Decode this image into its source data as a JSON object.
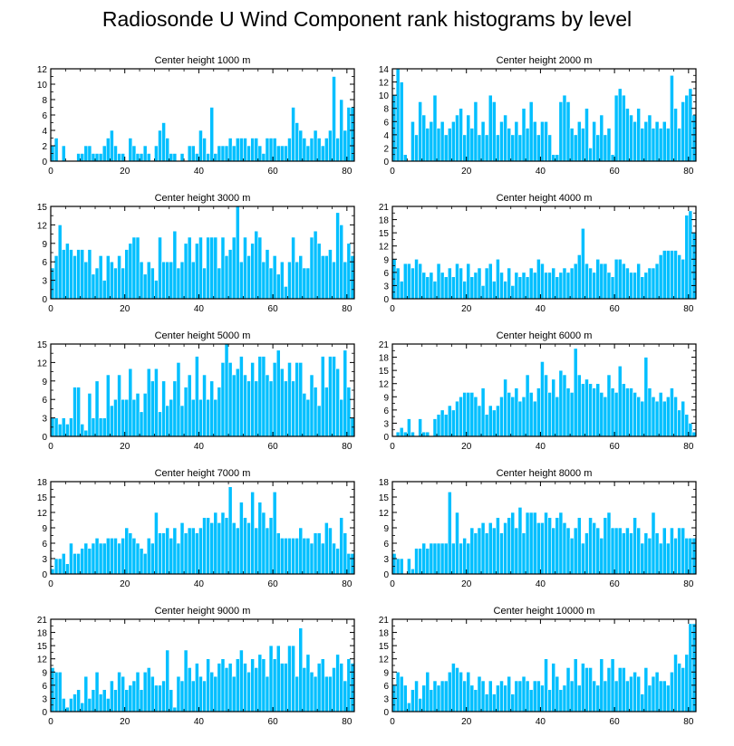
{
  "figure": {
    "title": "Radiosonde U Wind Component rank histograms by level",
    "bar_color": "#00bfff",
    "bar_edge_color": "#ffffff"
  },
  "chart_data": [
    {
      "type": "bar",
      "title": "Center height 1000 m",
      "xlabel": "",
      "ylabel": "",
      "xlim": [
        0,
        82
      ],
      "ylim": [
        0,
        12
      ],
      "xticks": [
        0,
        20,
        40,
        60,
        80
      ],
      "yticks": [
        0,
        2,
        4,
        6,
        8,
        10,
        12
      ],
      "values": [
        2,
        3,
        0,
        2,
        0,
        0,
        0,
        1,
        1,
        2,
        2,
        1,
        1,
        1,
        2,
        3,
        4,
        2,
        1,
        1,
        0,
        3,
        2,
        1,
        1,
        2,
        1,
        0,
        2,
        4,
        5,
        3,
        1,
        1,
        0,
        1,
        0,
        2,
        2,
        1,
        4,
        3,
        1,
        7,
        1,
        2,
        2,
        2,
        3,
        2,
        3,
        3,
        3,
        2,
        3,
        3,
        2,
        1,
        3,
        3,
        3,
        2,
        2,
        2,
        3,
        7,
        5,
        4,
        3,
        2,
        3,
        4,
        3,
        2,
        3,
        4,
        11,
        3,
        8,
        4,
        7,
        7
      ]
    },
    {
      "type": "bar",
      "title": "Center height 2000 m",
      "xlabel": "",
      "ylabel": "",
      "xlim": [
        0,
        82
      ],
      "ylim": [
        0,
        14
      ],
      "xticks": [
        0,
        20,
        40,
        60,
        80
      ],
      "yticks": [
        0,
        2,
        4,
        6,
        8,
        10,
        12,
        14
      ],
      "values": [
        10,
        14,
        12,
        1,
        0,
        6,
        4,
        9,
        7,
        5,
        6,
        10,
        5,
        6,
        4,
        5,
        6,
        7,
        8,
        4,
        7,
        5,
        9,
        4,
        6,
        4,
        10,
        9,
        4,
        6,
        7,
        5,
        4,
        6,
        4,
        8,
        5,
        9,
        6,
        4,
        6,
        6,
        4,
        1,
        1,
        9,
        10,
        9,
        5,
        4,
        6,
        5,
        8,
        2,
        6,
        4,
        7,
        4,
        5,
        1,
        10,
        11,
        10,
        8,
        7,
        6,
        8,
        5,
        6,
        7,
        5,
        6,
        5,
        6,
        5,
        13,
        8,
        5,
        9,
        10,
        11,
        7
      ]
    },
    {
      "type": "bar",
      "title": "Center height 3000 m",
      "xlabel": "",
      "ylabel": "",
      "xlim": [
        0,
        82
      ],
      "ylim": [
        0,
        15
      ],
      "xticks": [
        0,
        20,
        40,
        60,
        80
      ],
      "yticks": [
        0,
        3,
        6,
        9,
        12,
        15
      ],
      "values": [
        5,
        7,
        12,
        8,
        9,
        8,
        7,
        8,
        8,
        6,
        8,
        4,
        5,
        7,
        3,
        7,
        6,
        5,
        7,
        5,
        8,
        9,
        10,
        10,
        6,
        4,
        6,
        5,
        3,
        10,
        6,
        6,
        6,
        11,
        5,
        6,
        9,
        10,
        6,
        9,
        10,
        5,
        10,
        10,
        10,
        5,
        10,
        7,
        8,
        10,
        15,
        6,
        10,
        7,
        9,
        11,
        10,
        6,
        8,
        5,
        7,
        4,
        6,
        2,
        6,
        10,
        6,
        7,
        5,
        5,
        10,
        11,
        9,
        7,
        7,
        8,
        6,
        14,
        12,
        6,
        9,
        7
      ]
    },
    {
      "type": "bar",
      "title": "Center height 4000 m",
      "xlabel": "",
      "ylabel": "",
      "xlim": [
        0,
        82
      ],
      "ylim": [
        0,
        21
      ],
      "xticks": [
        0,
        20,
        40,
        60,
        80
      ],
      "yticks": [
        0,
        3,
        6,
        9,
        12,
        15,
        18,
        21
      ],
      "values": [
        9,
        7,
        4,
        8,
        8,
        7,
        9,
        8,
        6,
        5,
        6,
        4,
        8,
        6,
        5,
        7,
        5,
        8,
        7,
        4,
        8,
        5,
        6,
        7,
        3,
        7,
        8,
        4,
        9,
        6,
        4,
        7,
        3,
        6,
        5,
        6,
        5,
        7,
        6,
        9,
        8,
        6,
        6,
        7,
        5,
        6,
        7,
        6,
        7,
        8,
        10,
        16,
        8,
        7,
        6,
        9,
        8,
        8,
        6,
        5,
        9,
        9,
        8,
        7,
        6,
        6,
        8,
        5,
        6,
        7,
        7,
        8,
        10,
        11,
        11,
        11,
        11,
        10,
        9,
        19,
        20,
        15
      ]
    },
    {
      "type": "bar",
      "title": "Center height 5000 m",
      "xlabel": "",
      "ylabel": "",
      "xlim": [
        0,
        82
      ],
      "ylim": [
        0,
        15
      ],
      "xticks": [
        0,
        20,
        40,
        60,
        80
      ],
      "yticks": [
        0,
        3,
        6,
        9,
        12,
        15
      ],
      "values": [
        3,
        3,
        2,
        3,
        2,
        3,
        8,
        8,
        2,
        1,
        7,
        3,
        9,
        3,
        3,
        10,
        5,
        6,
        10,
        6,
        6,
        11,
        6,
        7,
        4,
        7,
        11,
        9,
        11,
        4,
        9,
        5,
        6,
        9,
        12,
        5,
        8,
        10,
        6,
        13,
        6,
        10,
        6,
        9,
        6,
        8,
        12,
        15,
        12,
        10,
        11,
        13,
        10,
        9,
        12,
        9,
        13,
        13,
        10,
        9,
        12,
        14,
        11,
        9,
        12,
        9,
        12,
        12,
        7,
        6,
        10,
        8,
        5,
        13,
        8,
        13,
        13,
        11,
        6,
        14,
        8,
        3
      ]
    },
    {
      "type": "bar",
      "title": "Center height 6000 m",
      "xlabel": "",
      "ylabel": "",
      "xlim": [
        0,
        82
      ],
      "ylim": [
        0,
        21
      ],
      "xticks": [
        0,
        20,
        40,
        60,
        80
      ],
      "yticks": [
        0,
        3,
        6,
        9,
        12,
        15,
        18,
        21
      ],
      "values": [
        0,
        1,
        2,
        1,
        4,
        1,
        0,
        4,
        1,
        1,
        0,
        4,
        5,
        6,
        5,
        7,
        6,
        8,
        9,
        10,
        10,
        10,
        9,
        7,
        11,
        5,
        7,
        6,
        7,
        9,
        13,
        10,
        9,
        11,
        8,
        9,
        14,
        10,
        8,
        11,
        17,
        14,
        10,
        13,
        9,
        15,
        14,
        11,
        10,
        20,
        14,
        12,
        13,
        12,
        11,
        12,
        10,
        9,
        14,
        11,
        10,
        16,
        12,
        11,
        11,
        10,
        9,
        8,
        18,
        11,
        9,
        8,
        10,
        8,
        9,
        11,
        9,
        6,
        8,
        5,
        3,
        1
      ]
    },
    {
      "type": "bar",
      "title": "Center height 7000 m",
      "xlabel": "",
      "ylabel": "",
      "xlim": [
        0,
        82
      ],
      "ylim": [
        0,
        18
      ],
      "xticks": [
        0,
        20,
        40,
        60,
        80
      ],
      "yticks": [
        0,
        3,
        6,
        9,
        12,
        15,
        18
      ],
      "values": [
        1,
        3,
        3,
        4,
        2,
        6,
        4,
        4,
        5,
        6,
        5,
        6,
        7,
        6,
        6,
        7,
        7,
        7,
        6,
        7,
        9,
        8,
        7,
        6,
        5,
        4,
        7,
        6,
        12,
        8,
        8,
        9,
        7,
        9,
        6,
        10,
        8,
        9,
        9,
        8,
        9,
        11,
        11,
        10,
        12,
        10,
        12,
        11,
        17,
        10,
        9,
        14,
        11,
        10,
        16,
        9,
        14,
        12,
        9,
        11,
        16,
        8,
        7,
        7,
        7,
        7,
        7,
        9,
        7,
        7,
        6,
        8,
        8,
        6,
        10,
        9,
        6,
        5,
        11,
        8,
        4,
        4
      ]
    },
    {
      "type": "bar",
      "title": "Center height 8000 m",
      "xlabel": "",
      "ylabel": "",
      "xlim": [
        0,
        82
      ],
      "ylim": [
        0,
        18
      ],
      "xticks": [
        0,
        20,
        40,
        60,
        80
      ],
      "yticks": [
        0,
        3,
        6,
        9,
        12,
        15,
        18
      ],
      "values": [
        4,
        3,
        3,
        0,
        3,
        1,
        5,
        5,
        6,
        5,
        6,
        6,
        6,
        6,
        6,
        16,
        6,
        12,
        6,
        7,
        6,
        9,
        8,
        9,
        10,
        8,
        10,
        9,
        11,
        8,
        10,
        11,
        12,
        9,
        13,
        8,
        12,
        12,
        12,
        10,
        10,
        12,
        11,
        9,
        11,
        12,
        10,
        9,
        7,
        9,
        11,
        6,
        8,
        11,
        10,
        9,
        7,
        11,
        12,
        9,
        9,
        9,
        8,
        9,
        8,
        11,
        9,
        6,
        8,
        7,
        12,
        8,
        6,
        9,
        6,
        9,
        7,
        9,
        9,
        7,
        7,
        7
      ]
    },
    {
      "type": "bar",
      "title": "Center height 9000 m",
      "xlabel": "",
      "ylabel": "",
      "xlim": [
        0,
        82
      ],
      "ylim": [
        0,
        21
      ],
      "xticks": [
        0,
        20,
        40,
        60,
        80
      ],
      "yticks": [
        0,
        3,
        6,
        9,
        12,
        15,
        18,
        21
      ],
      "values": [
        10,
        9,
        9,
        3,
        1,
        3,
        4,
        5,
        2,
        8,
        3,
        5,
        9,
        4,
        5,
        3,
        7,
        5,
        9,
        8,
        5,
        6,
        7,
        9,
        5,
        9,
        10,
        8,
        6,
        6,
        7,
        14,
        5,
        1,
        8,
        7,
        14,
        10,
        7,
        11,
        8,
        7,
        12,
        9,
        8,
        11,
        12,
        10,
        11,
        8,
        12,
        14,
        11,
        9,
        12,
        10,
        13,
        12,
        8,
        15,
        12,
        15,
        11,
        11,
        15,
        15,
        8,
        19,
        10,
        13,
        9,
        8,
        11,
        12,
        8,
        8,
        10,
        13,
        11,
        7,
        12,
        11
      ]
    },
    {
      "type": "bar",
      "title": "Center height 10000 m",
      "xlabel": "",
      "ylabel": "",
      "xlim": [
        0,
        82
      ],
      "ylim": [
        0,
        21
      ],
      "xticks": [
        0,
        20,
        40,
        60,
        80
      ],
      "yticks": [
        0,
        3,
        6,
        9,
        12,
        15,
        18,
        21
      ],
      "values": [
        6,
        9,
        8,
        6,
        2,
        5,
        7,
        3,
        6,
        9,
        5,
        7,
        6,
        7,
        7,
        9,
        11,
        10,
        9,
        7,
        9,
        6,
        5,
        8,
        7,
        4,
        7,
        4,
        6,
        7,
        6,
        8,
        4,
        7,
        7,
        8,
        7,
        5,
        7,
        7,
        6,
        12,
        5,
        11,
        8,
        5,
        6,
        10,
        7,
        12,
        6,
        11,
        10,
        10,
        7,
        6,
        12,
        7,
        10,
        12,
        7,
        10,
        10,
        7,
        8,
        9,
        8,
        4,
        10,
        6,
        8,
        9,
        7,
        7,
        6,
        9,
        13,
        11,
        10,
        13,
        20,
        20
      ]
    }
  ]
}
